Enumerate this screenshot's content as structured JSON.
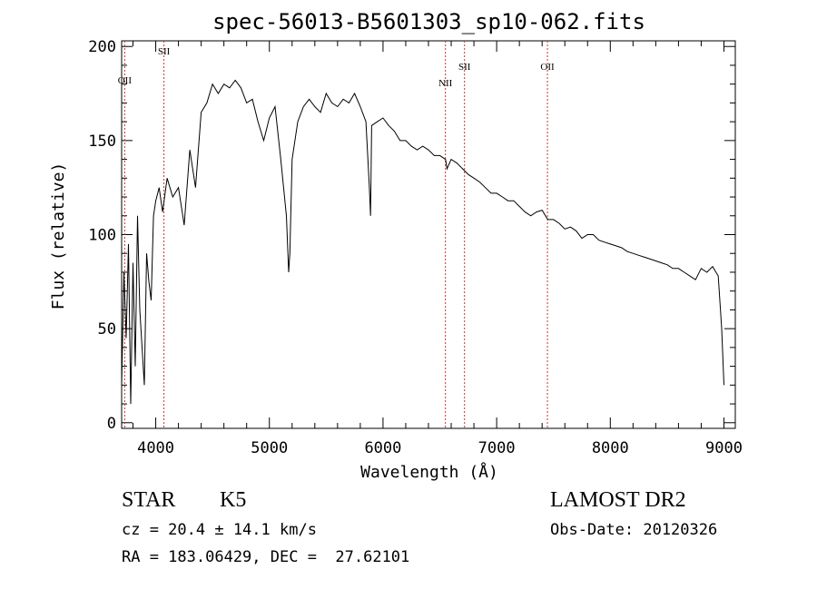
{
  "chart_data": {
    "type": "line",
    "title": "spec-56013-B5601303_sp10-062.fits",
    "xlabel": "Wavelength (Å)",
    "ylabel": "Flux (relative)",
    "xlim": [
      3700,
      9100
    ],
    "ylim": [
      -3,
      203
    ],
    "xticks": [
      "4000",
      "5000",
      "6000",
      "7000",
      "8000",
      "9000"
    ],
    "yticks": [
      "0",
      "50",
      "100",
      "150",
      "200"
    ],
    "series": [
      {
        "x": [
          3700,
          3720,
          3740,
          3760,
          3780,
          3800,
          3820,
          3840,
          3860,
          3880,
          3900,
          3920,
          3940,
          3960,
          3980,
          4000,
          4030,
          4060,
          4100,
          4150,
          4200,
          4250,
          4300,
          4350,
          4400,
          4450,
          4500,
          4550,
          4600,
          4650,
          4700,
          4750,
          4800,
          4850,
          4900,
          4950,
          5000,
          5050,
          5100,
          5150,
          5170,
          5180,
          5200,
          5250,
          5300,
          5350,
          5400,
          5450,
          5500,
          5550,
          5600,
          5650,
          5700,
          5750,
          5800,
          5850,
          5880,
          5890,
          5900,
          5950,
          6000,
          6050,
          6100,
          6150,
          6200,
          6250,
          6300,
          6350,
          6400,
          6450,
          6500,
          6550,
          6563,
          6600,
          6650,
          6700,
          6750,
          6800,
          6850,
          6900,
          6950,
          7000,
          7050,
          7100,
          7150,
          7200,
          7250,
          7300,
          7350,
          7400,
          7450,
          7500,
          7550,
          7600,
          7650,
          7700,
          7750,
          7800,
          7850,
          7900,
          7950,
          8000,
          8050,
          8100,
          8150,
          8200,
          8250,
          8300,
          8350,
          8400,
          8450,
          8500,
          8550,
          8600,
          8650,
          8700,
          8750,
          8800,
          8850,
          8900,
          8950,
          8980,
          9000
        ],
        "y": [
          20,
          80,
          45,
          95,
          10,
          85,
          30,
          110,
          60,
          40,
          20,
          90,
          75,
          65,
          110,
          118,
          125,
          112,
          130,
          120,
          125,
          105,
          145,
          125,
          165,
          170,
          180,
          175,
          180,
          178,
          182,
          178,
          170,
          172,
          160,
          150,
          162,
          168,
          140,
          110,
          80,
          90,
          140,
          160,
          168,
          172,
          168,
          165,
          175,
          170,
          168,
          172,
          170,
          175,
          168,
          160,
          125,
          110,
          158,
          160,
          162,
          158,
          155,
          150,
          150,
          147,
          145,
          147,
          145,
          142,
          142,
          140,
          135,
          140,
          138,
          135,
          132,
          130,
          128,
          125,
          122,
          122,
          120,
          118,
          118,
          115,
          112,
          110,
          112,
          113,
          108,
          108,
          106,
          103,
          104,
          102,
          98,
          100,
          100,
          97,
          96,
          95,
          94,
          93,
          91,
          90,
          89,
          88,
          87,
          86,
          85,
          84,
          82,
          82,
          80,
          78,
          76,
          82,
          80,
          83,
          78,
          50,
          20
        ]
      }
    ],
    "emission_lines": [
      {
        "label": "OII",
        "x": 3727
      },
      {
        "label": "SII",
        "x": 4072
      },
      {
        "label": "NII",
        "x": 6549
      },
      {
        "label": "SII",
        "x": 6717
      },
      {
        "label": "OII",
        "x": 7447
      }
    ]
  },
  "info": {
    "star": "STAR",
    "subclass": "K5",
    "cz": "cz = 20.4 ± 14.1 km/s",
    "radec": "RA = 183.06429, DEC =  27.62101",
    "survey": "LAMOST DR2",
    "obsdate": "Obs-Date: 20120326"
  }
}
